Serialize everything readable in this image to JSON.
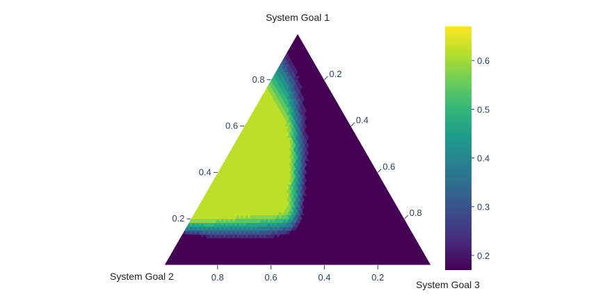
{
  "chart_data": {
    "type": "ternary-contour",
    "title": "",
    "axes": [
      {
        "name": "System Goal 1",
        "ticks": [
          0.2,
          0.4,
          0.6,
          0.8
        ],
        "tick_labels": [
          "0.2",
          "0.4",
          "0.6",
          "0.8"
        ]
      },
      {
        "name": "System Goal 2",
        "ticks": [
          0.2,
          0.4,
          0.6,
          0.8
        ],
        "tick_labels": [
          "0.8",
          "0.6",
          "0.4",
          "0.2"
        ]
      },
      {
        "name": "System Goal 3",
        "ticks": [
          0.2,
          0.4,
          0.6,
          0.8
        ],
        "tick_labels": [
          "0.2",
          "0.4",
          "0.6",
          "0.8"
        ]
      }
    ],
    "colorbar": {
      "colorscale": "viridis",
      "range": [
        0.17,
        0.67
      ],
      "ticks": [
        0.2,
        0.3,
        0.4,
        0.5,
        0.6
      ],
      "tick_labels": [
        "0.2",
        "0.3",
        "0.4",
        "0.5",
        "0.6"
      ]
    },
    "contour_levels": [
      0.22,
      0.26,
      0.3,
      0.34,
      0.38,
      0.42,
      0.46,
      0.5,
      0.54,
      0.58,
      0.62
    ],
    "max_region": {
      "goal1_range": [
        0.2,
        0.85
      ],
      "goal2_range": [
        0.1,
        0.75
      ],
      "value": 0.66
    },
    "min_regions": [
      {
        "corner": "System Goal 2",
        "value": 0.17
      },
      {
        "corner": "System Goal 3",
        "value": 0.17
      }
    ]
  }
}
